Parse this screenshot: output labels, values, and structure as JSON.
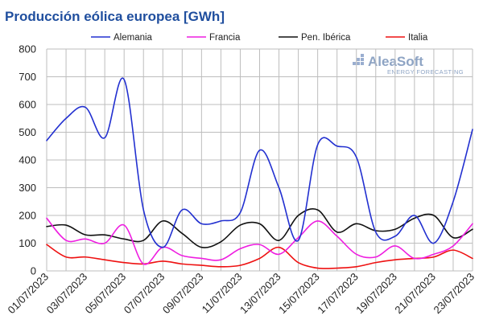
{
  "chart_data": {
    "type": "line",
    "title": "Producción eólica europea [GWh]",
    "ylim": [
      0,
      800
    ],
    "y_ticks": [
      0,
      100,
      200,
      300,
      400,
      500,
      600,
      700,
      800
    ],
    "grid": true,
    "legend_position": "top",
    "x_tick_labels": [
      "01/07/2023",
      "03/07/2023",
      "05/07/2023",
      "07/07/2023",
      "09/07/2023",
      "11/07/2023",
      "13/07/2023",
      "15/07/2023",
      "17/07/2023",
      "19/07/2023",
      "21/07/2023",
      "23/07/2023"
    ],
    "x": [
      "01/07/2023",
      "02/07/2023",
      "03/07/2023",
      "04/07/2023",
      "05/07/2023",
      "06/07/2023",
      "07/07/2023",
      "08/07/2023",
      "09/07/2023",
      "10/07/2023",
      "11/07/2023",
      "12/07/2023",
      "13/07/2023",
      "14/07/2023",
      "15/07/2023",
      "16/07/2023",
      "17/07/2023",
      "18/07/2023",
      "19/07/2023",
      "20/07/2023",
      "21/07/2023",
      "22/07/2023",
      "23/07/2023"
    ],
    "series": [
      {
        "name": "Alemania",
        "color": "#2230d0",
        "values": [
          470,
          550,
          590,
          480,
          690,
          220,
          85,
          220,
          170,
          180,
          210,
          435,
          300,
          110,
          455,
          450,
          410,
          140,
          125,
          200,
          100,
          250,
          510
        ]
      },
      {
        "name": "Francia",
        "color": "#ee1ee0",
        "values": [
          190,
          110,
          115,
          100,
          165,
          25,
          85,
          55,
          45,
          40,
          80,
          95,
          60,
          120,
          180,
          125,
          60,
          50,
          90,
          45,
          60,
          90,
          170
        ]
      },
      {
        "name": "Pen. Ibérica",
        "color": "#111111",
        "values": [
          160,
          165,
          130,
          130,
          115,
          110,
          180,
          135,
          85,
          105,
          165,
          170,
          110,
          200,
          220,
          140,
          170,
          145,
          150,
          190,
          200,
          120,
          150
        ]
      },
      {
        "name": "Italia",
        "color": "#ee1111",
        "values": [
          95,
          50,
          50,
          40,
          30,
          25,
          35,
          25,
          20,
          15,
          20,
          45,
          85,
          30,
          10,
          10,
          15,
          30,
          40,
          45,
          50,
          75,
          45
        ]
      }
    ]
  },
  "logo": {
    "main": "AleaSoft",
    "sub": "ENERGY FORECASTING"
  }
}
